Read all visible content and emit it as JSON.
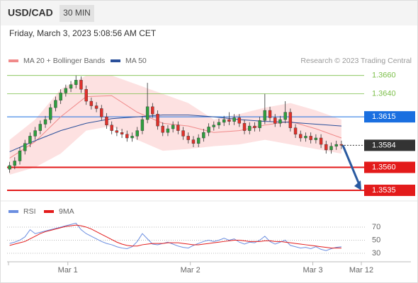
{
  "header": {
    "symbol": "USD/CAD",
    "interval": "30 MIN",
    "timestamp": "Friday, March 3, 2023 5:08:56 AM CET",
    "credit": "Research © 2023 Trading Central"
  },
  "chart_data": [
    {
      "type": "candlestick",
      "x": [
        0,
        1,
        2,
        3,
        4,
        5,
        6,
        7,
        8,
        9,
        10,
        11,
        12,
        13,
        14,
        15,
        16,
        17,
        18,
        19,
        20,
        21,
        22,
        23,
        24,
        25,
        26,
        27,
        28,
        29,
        30,
        31,
        32,
        33,
        34,
        35,
        36,
        37,
        38,
        39,
        40,
        41,
        42,
        43,
        44,
        45,
        46,
        47,
        48,
        49,
        50,
        51,
        52,
        53,
        54,
        55,
        56,
        57,
        58,
        59,
        60,
        61,
        62,
        63,
        64,
        65
      ],
      "open": [
        1.3558,
        1.3562,
        1.3567,
        1.3578,
        1.3586,
        1.3594,
        1.36,
        1.3607,
        1.3612,
        1.3625,
        1.3633,
        1.3641,
        1.3646,
        1.365,
        1.3655,
        1.3645,
        1.3632,
        1.3627,
        1.3624,
        1.3615,
        1.3606,
        1.36,
        1.3598,
        1.3596,
        1.3592,
        1.3594,
        1.36,
        1.3612,
        1.3626,
        1.3618,
        1.3605,
        1.3598,
        1.3602,
        1.3606,
        1.36,
        1.3594,
        1.359,
        1.3586,
        1.3592,
        1.3598,
        1.3604,
        1.3606,
        1.3609,
        1.3612,
        1.361,
        1.3614,
        1.3608,
        1.36,
        1.3605,
        1.3603,
        1.3611,
        1.3622,
        1.3614,
        1.3608,
        1.3612,
        1.362,
        1.3603,
        1.3596,
        1.3592,
        1.3594,
        1.359,
        1.3592,
        1.3585,
        1.3579,
        1.3583,
        1.3585
      ],
      "high": [
        1.3566,
        1.3571,
        1.3582,
        1.359,
        1.3598,
        1.3604,
        1.3611,
        1.3616,
        1.3629,
        1.3637,
        1.3645,
        1.365,
        1.3654,
        1.366,
        1.3659,
        1.3649,
        1.3636,
        1.3631,
        1.3628,
        1.3619,
        1.361,
        1.3604,
        1.3602,
        1.36,
        1.3598,
        1.3604,
        1.3616,
        1.3652,
        1.363,
        1.3622,
        1.3609,
        1.3606,
        1.361,
        1.361,
        1.3604,
        1.3598,
        1.3594,
        1.3596,
        1.3602,
        1.3608,
        1.361,
        1.3613,
        1.3616,
        1.362,
        1.3618,
        1.3618,
        1.3612,
        1.3609,
        1.3609,
        1.3615,
        1.364,
        1.3626,
        1.3618,
        1.3616,
        1.3632,
        1.3624,
        1.3607,
        1.36,
        1.3598,
        1.3598,
        1.3596,
        1.3596,
        1.3589,
        1.3587,
        1.3589,
        1.3589
      ],
      "low": [
        1.3554,
        1.3558,
        1.3563,
        1.3574,
        1.3582,
        1.359,
        1.3596,
        1.3603,
        1.3608,
        1.3621,
        1.3629,
        1.3637,
        1.3642,
        1.3646,
        1.3641,
        1.3628,
        1.3623,
        1.362,
        1.3611,
        1.3602,
        1.3596,
        1.3594,
        1.3592,
        1.3588,
        1.3588,
        1.359,
        1.3596,
        1.3608,
        1.3614,
        1.3601,
        1.3594,
        1.3594,
        1.3598,
        1.3596,
        1.359,
        1.3586,
        1.3582,
        1.3582,
        1.3588,
        1.3594,
        1.36,
        1.3602,
        1.3605,
        1.3606,
        1.3606,
        1.3604,
        1.3596,
        1.3596,
        1.3599,
        1.3599,
        1.3607,
        1.361,
        1.3604,
        1.3604,
        1.3608,
        1.3599,
        1.3592,
        1.3588,
        1.3588,
        1.3586,
        1.3586,
        1.3581,
        1.3575,
        1.3575,
        1.3579,
        1.358
      ],
      "close": [
        1.3562,
        1.3567,
        1.3578,
        1.3586,
        1.3594,
        1.36,
        1.3607,
        1.3612,
        1.3625,
        1.3633,
        1.3641,
        1.3646,
        1.365,
        1.3655,
        1.3645,
        1.3632,
        1.3627,
        1.3624,
        1.3615,
        1.3606,
        1.36,
        1.3598,
        1.3596,
        1.3592,
        1.3594,
        1.36,
        1.3612,
        1.3626,
        1.3618,
        1.3605,
        1.3598,
        1.3602,
        1.3606,
        1.36,
        1.3594,
        1.359,
        1.3586,
        1.3592,
        1.3598,
        1.3604,
        1.3606,
        1.3609,
        1.3612,
        1.361,
        1.3614,
        1.3608,
        1.36,
        1.3605,
        1.3603,
        1.3611,
        1.3622,
        1.3614,
        1.3608,
        1.3612,
        1.362,
        1.3603,
        1.3596,
        1.3592,
        1.3594,
        1.359,
        1.3592,
        1.3585,
        1.3579,
        1.3583,
        1.3585,
        1.3584
      ],
      "up_color": "#2e9e3e",
      "down_color": "#e0302a",
      "xlim": [
        -0.5,
        68.9
      ],
      "ylim": [
        1.3525,
        1.3669
      ],
      "series": [
        {
          "name": "MA 20 + Bollinger Bands",
          "color": "#f08a8a",
          "band_color": "#fde1e1",
          "x": [
            0,
            5,
            10,
            15,
            20,
            25,
            30,
            35,
            40,
            45,
            50,
            55,
            60,
            65
          ],
          "values": [
            1.357,
            1.3588,
            1.3615,
            1.3637,
            1.3638,
            1.362,
            1.3608,
            1.3605,
            1.3598,
            1.36,
            1.3606,
            1.361,
            1.3602,
            1.3592
          ],
          "upper": [
            1.359,
            1.3612,
            1.3645,
            1.366,
            1.366,
            1.365,
            1.364,
            1.363,
            1.3612,
            1.3618,
            1.3625,
            1.363,
            1.3622,
            1.3612
          ],
          "lower": [
            1.3552,
            1.356,
            1.3575,
            1.36,
            1.3605,
            1.359,
            1.3578,
            1.358,
            1.3583,
            1.3585,
            1.359,
            1.3585,
            1.358,
            1.3575
          ]
        },
        {
          "name": "MA 50",
          "color": "#2a4f9a",
          "x": [
            0,
            5,
            10,
            15,
            20,
            25,
            30,
            35,
            40,
            45,
            50,
            55,
            60,
            65
          ],
          "values": [
            1.3577,
            1.3589,
            1.36,
            1.3608,
            1.3613,
            1.3615,
            1.3617,
            1.3617,
            1.3615,
            1.3612,
            1.361,
            1.3609,
            1.3607,
            1.3605
          ]
        }
      ],
      "levels": [
        {
          "value": 1.366,
          "label": "1.3660",
          "color": "#7cbf4a",
          "line": "solid",
          "width": 0.8,
          "style": "text"
        },
        {
          "value": 1.364,
          "label": "1.3640",
          "color": "#7cbf4a",
          "line": "solid",
          "width": 0.8,
          "style": "text"
        },
        {
          "value": 1.3615,
          "label": "1.3615",
          "color": "#1a6fe0",
          "line": "solid",
          "width": 1,
          "style": "box"
        },
        {
          "value": 1.3584,
          "label": "1.3584",
          "color": "#333333",
          "line": "dotted",
          "width": 1,
          "style": "box"
        },
        {
          "value": 1.356,
          "label": "1.3560",
          "color": "#e31b1b",
          "line": "solid",
          "width": 2,
          "style": "box"
        },
        {
          "value": 1.3535,
          "label": "1.3535",
          "color": "#e31b1b",
          "line": "solid",
          "width": 2,
          "style": "box"
        }
      ],
      "forecast_color": "#2a5aa0"
    },
    {
      "type": "line",
      "x": [
        0,
        1,
        2,
        3,
        4,
        5,
        6,
        7,
        8,
        9,
        10,
        11,
        12,
        13,
        14,
        15,
        16,
        17,
        18,
        19,
        20,
        21,
        22,
        23,
        24,
        25,
        26,
        27,
        28,
        29,
        30,
        31,
        32,
        33,
        34,
        35,
        36,
        37,
        38,
        39,
        40,
        41,
        42,
        43,
        44,
        45,
        46,
        47,
        48,
        49,
        50,
        51,
        52,
        53,
        54,
        55,
        56,
        57,
        58,
        59,
        60,
        61,
        62,
        63,
        64,
        65
      ],
      "series": [
        {
          "name": "RSI",
          "color": "#6b8ee0",
          "values": [
            45,
            47,
            50,
            55,
            66,
            60,
            62,
            64,
            66,
            68,
            70,
            72,
            74,
            76,
            66,
            60,
            56,
            52,
            48,
            45,
            43,
            40,
            38,
            37,
            40,
            48,
            60,
            52,
            44,
            43,
            45,
            47,
            44,
            41,
            39,
            38,
            42,
            45,
            48,
            50,
            48,
            50,
            53,
            50,
            52,
            47,
            44,
            47,
            46,
            50,
            56,
            48,
            44,
            47,
            50,
            42,
            40,
            38,
            39,
            37,
            40,
            36,
            34,
            37,
            39,
            40
          ]
        },
        {
          "name": "9MA",
          "color": "#e31b1b",
          "values": [
            42,
            44,
            46,
            48,
            52,
            56,
            60,
            63,
            65,
            67,
            69,
            71,
            72,
            73,
            72,
            70,
            67,
            63,
            59,
            55,
            51,
            47,
            44,
            42,
            41,
            41,
            43,
            44,
            45,
            45,
            45,
            46,
            46,
            46,
            45,
            44,
            43,
            43,
            44,
            45,
            46,
            47,
            48,
            49,
            50,
            50,
            49,
            48,
            48,
            48,
            49,
            49,
            48,
            48,
            47,
            46,
            45,
            44,
            43,
            42,
            41,
            40,
            39,
            38,
            38,
            38
          ]
        }
      ],
      "xlim": [
        -0.5,
        68.9
      ],
      "xticks": [
        {
          "value": 11.4,
          "label": "Mar 1"
        },
        {
          "value": 35.4,
          "label": "Mar 2"
        },
        {
          "value": 59.4,
          "label": "Mar 3"
        },
        {
          "value": 68.9,
          "label": "Mar 12"
        }
      ],
      "ylim": [
        17,
        84
      ],
      "yticks": [
        30,
        50,
        70
      ],
      "grid": true
    }
  ]
}
